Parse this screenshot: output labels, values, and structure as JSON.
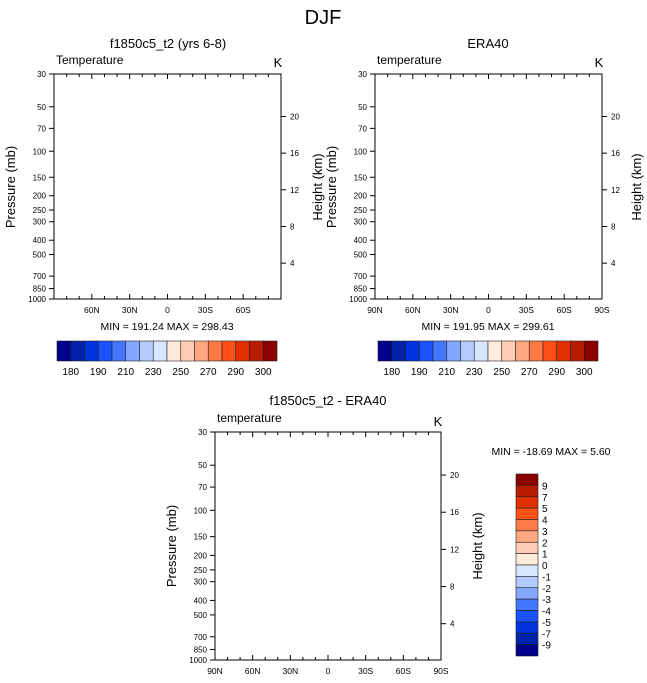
{
  "figure_title": "DJF",
  "chart_data": [
    {
      "type": "heatmap",
      "id": "model",
      "title": "f1850c5_t2 (yrs 6-8)",
      "left_label": "Temperature",
      "right_label": "K",
      "ylabel": "Pressure (mb)",
      "ylabel_right": "Height (km)",
      "xlabel": "",
      "x_ticks": [
        "",
        "60N",
        "30N",
        "0",
        "30S",
        "60S",
        ""
      ],
      "y_ticks": [
        "30",
        "50",
        "70",
        "100",
        "150",
        "200",
        "250",
        "300",
        "400",
        "500",
        "700",
        "850",
        "1000"
      ],
      "y_right_ticks": [
        "20",
        "16",
        "12",
        "8",
        "4"
      ],
      "ylim": [
        1000,
        30
      ],
      "xlim": [
        "90N",
        "90S"
      ],
      "min_max_text": "MIN = 191.24  MAX = 298.43",
      "min": 191.24,
      "max": 298.43,
      "colorbar": {
        "orientation": "horizontal",
        "labels": [
          "180",
          "190",
          "210",
          "230",
          "250",
          "270",
          "290",
          "300"
        ]
      }
    },
    {
      "type": "heatmap",
      "id": "obs",
      "title": "ERA40",
      "left_label": "temperature",
      "right_label": "K",
      "ylabel": "Pressure (mb)",
      "ylabel_right": "Height (km)",
      "xlabel": "",
      "x_ticks": [
        "90N",
        "60N",
        "30N",
        "0",
        "30S",
        "60S",
        "90S"
      ],
      "y_ticks": [
        "30",
        "50",
        "70",
        "100",
        "150",
        "200",
        "250",
        "300",
        "400",
        "500",
        "700",
        "850",
        "1000"
      ],
      "y_right_ticks": [
        "20",
        "16",
        "12",
        "8",
        "4"
      ],
      "ylim": [
        1000,
        30
      ],
      "xlim": [
        "90N",
        "90S"
      ],
      "min_max_text": "MIN = 191.95  MAX = 299.61",
      "min": 191.95,
      "max": 299.61,
      "colorbar": {
        "orientation": "horizontal",
        "labels": [
          "180",
          "190",
          "210",
          "230",
          "250",
          "270",
          "290",
          "300"
        ]
      }
    },
    {
      "type": "heatmap",
      "id": "diff",
      "title": "f1850c5_t2 - ERA40",
      "left_label": "temperature",
      "right_label": "K",
      "ylabel": "Pressure (mb)",
      "ylabel_right": "Height (km)",
      "xlabel": "",
      "x_ticks": [
        "90N",
        "60N",
        "30N",
        "0",
        "30S",
        "60S",
        "90S"
      ],
      "y_ticks": [
        "30",
        "50",
        "70",
        "100",
        "150",
        "200",
        "250",
        "300",
        "400",
        "500",
        "700",
        "850",
        "1000"
      ],
      "y_right_ticks": [
        "20",
        "16",
        "12",
        "8",
        "4"
      ],
      "ylim": [
        1000,
        30
      ],
      "xlim": [
        "90N",
        "90S"
      ],
      "min_max_text": "MIN = -18.69  MAX =   5.60",
      "min": -18.69,
      "max": 5.6,
      "colorbar": {
        "orientation": "vertical",
        "labels": [
          "9",
          "7",
          "5",
          "4",
          "3",
          "2",
          "1",
          "0",
          "-1",
          "-2",
          "-3",
          "-4",
          "-5",
          "-7",
          "-9"
        ]
      }
    }
  ],
  "palette": [
    "#00008b",
    "#0022aa",
    "#0033dd",
    "#1c52ff",
    "#4477ff",
    "#85a8ff",
    "#b3cbff",
    "#d6e7ff",
    "#ffeadb",
    "#ffcdb4",
    "#ffa882",
    "#ff7a48",
    "#ff5018",
    "#e03000",
    "#b81c00",
    "#8b0000"
  ]
}
